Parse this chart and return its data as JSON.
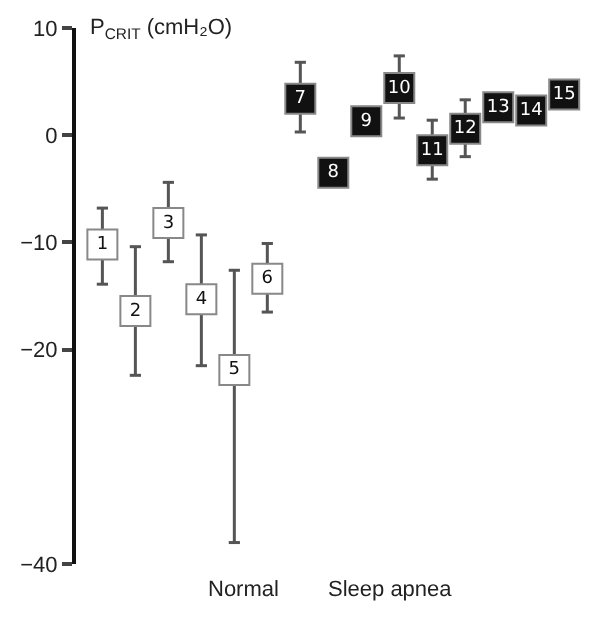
{
  "chart_data": {
    "type": "scatter",
    "ylabel": "P$_{CRIT}$ (cmH₂O)",
    "categories": [
      "1",
      "2",
      "3",
      "4",
      "5",
      "6",
      "7",
      "8",
      "9",
      "10",
      "11",
      "12",
      "13",
      "14",
      "15"
    ],
    "values": [
      -10.2,
      -16.4,
      -8.2,
      -15.3,
      -21.9,
      -13.4,
      3.4,
      -3.5,
      1.3,
      4.4,
      -1.4,
      0.6,
      2.6,
      2.3,
      3.8
    ],
    "errors": [
      [
        -13.9,
        -6.8
      ],
      [
        -22.4,
        -10.4
      ],
      [
        -11.8,
        -4.4
      ],
      [
        -21.5,
        -9.3
      ],
      [
        -38,
        -12.6
      ],
      [
        -16.5,
        -10.1
      ],
      [
        0.3,
        6.8
      ],
      null,
      [
        0.3,
        2.6
      ],
      [
        1.6,
        7.4
      ],
      [
        -4.1,
        1.4
      ],
      [
        -2.0,
        3.3
      ],
      null,
      [
        1.3,
        3.3
      ],
      [
        2.6,
        5.1
      ]
    ],
    "colors": [
      "#ffffff",
      "#ffffff",
      "#ffffff",
      "#ffffff",
      "#ffffff",
      "#ffffff",
      "#111111",
      "#111111",
      "#111111",
      "#111111",
      "#111111",
      "#111111",
      "#111111",
      "#111111",
      "#111111"
    ],
    "marker": "square",
    "ylim": [
      -40,
      10
    ],
    "yticks": [
      10,
      0,
      -10,
      -20,
      -40
    ],
    "annotations": [
      "Normal",
      "Sleep apnea"
    ]
  }
}
